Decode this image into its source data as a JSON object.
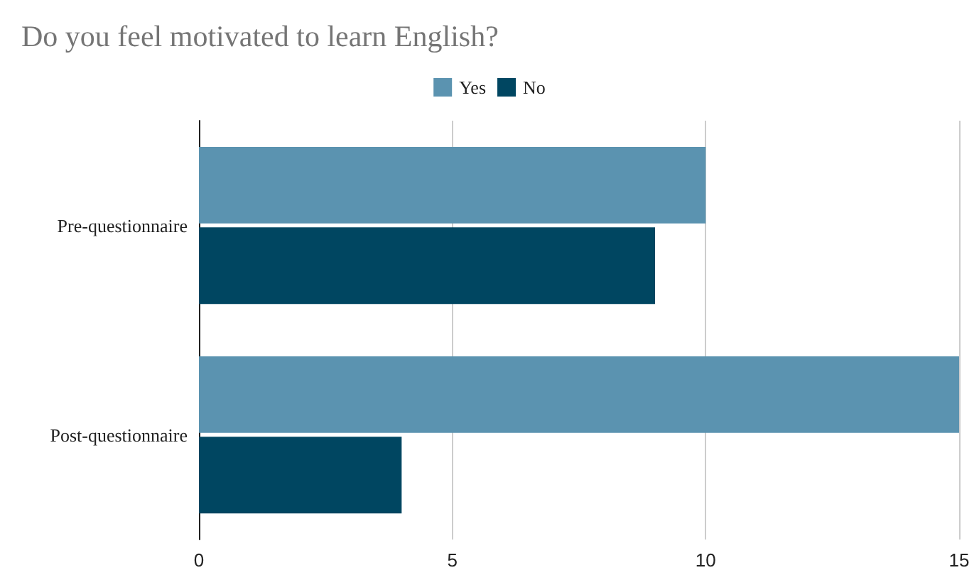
{
  "chart_data": {
    "type": "bar",
    "orientation": "horizontal",
    "title": "Do you feel motivated to learn English?",
    "categories": [
      "Pre-questionnaire",
      "Post-questionnaire"
    ],
    "series": [
      {
        "name": "Yes",
        "color": "#5b93b0",
        "values": [
          10,
          15
        ]
      },
      {
        "name": "No",
        "color": "#004661",
        "values": [
          9,
          4
        ]
      }
    ],
    "xlim": [
      0,
      15
    ],
    "xticks": [
      0,
      5,
      10,
      15
    ],
    "grid": "x",
    "legend": "top"
  }
}
